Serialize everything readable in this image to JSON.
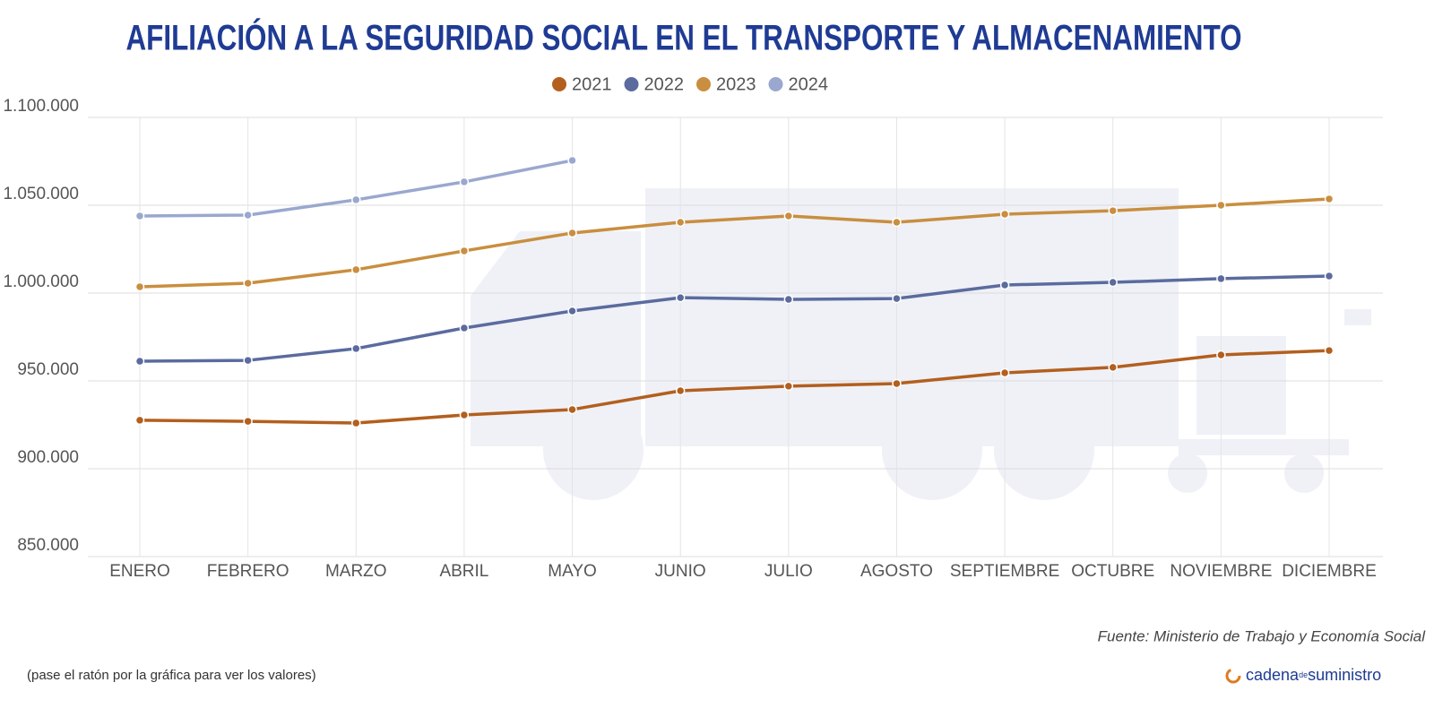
{
  "chart_data": {
    "type": "line",
    "title": "AFILIACIÓN A LA SEGURIDAD SOCIAL EN EL TRANSPORTE Y ALMACENAMIENTO",
    "categories": [
      "ENERO",
      "FEBRERO",
      "MARZO",
      "ABRIL",
      "MAYO",
      "JUNIO",
      "JULIO",
      "AGOSTO",
      "SEPTIEMBRE",
      "OCTUBRE",
      "NOVIEMBRE",
      "DICIEMBRE"
    ],
    "series": [
      {
        "name": "2021",
        "color": "#b35f1e",
        "values": [
          927600,
          927000,
          926000,
          930600,
          933700,
          944400,
          947000,
          948500,
          954600,
          957700,
          964800,
          967300
        ]
      },
      {
        "name": "2022",
        "color": "#5b6b9e",
        "values": [
          961200,
          961700,
          968400,
          980100,
          989800,
          997400,
          996400,
          996900,
          1004600,
          1006100,
          1008200,
          1009700
        ]
      },
      {
        "name": "2023",
        "color": "#c98e3f",
        "values": [
          1003600,
          1005600,
          1013300,
          1024000,
          1034200,
          1040300,
          1043900,
          1040300,
          1044900,
          1046900,
          1050000,
          1053600
        ]
      },
      {
        "name": "2024",
        "color": "#9aa8cf",
        "values": [
          1043900,
          1044400,
          1053100,
          1063300,
          1075500,
          null,
          null,
          null,
          null,
          null,
          null,
          null
        ]
      }
    ],
    "ylim": [
      850000,
      1100000
    ],
    "yticks": [
      {
        "value": 850000,
        "label": "850.000"
      },
      {
        "value": 900000,
        "label": "900.000"
      },
      {
        "value": 950000,
        "label": "950.000"
      },
      {
        "value": 1000000,
        "label": "1.000.000"
      },
      {
        "value": 1050000,
        "label": "1.050.000"
      },
      {
        "value": 1100000,
        "label": "1.100.000"
      }
    ],
    "grid": true,
    "legend": "top",
    "source": "Fuente: Ministerio de Trabajo y Economía Social",
    "note": "(pase el ratón por la gráfica para ver los valores)",
    "brand": [
      "cadena",
      "de",
      "suministro"
    ]
  }
}
